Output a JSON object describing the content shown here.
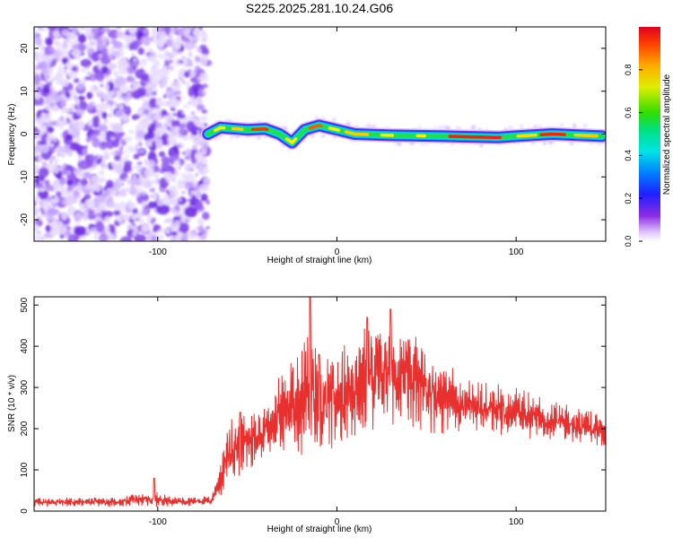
{
  "title": "S225.2025.281.10.24.G06",
  "chart_data": [
    {
      "type": "heatmap",
      "xlabel": "Height of straight line (km)",
      "ylabel": "Frequency (Hz)",
      "xlim": [
        -169,
        150
      ],
      "ylim": [
        -25,
        25
      ],
      "xticks": [
        -100,
        0,
        100
      ],
      "yticks": [
        -20,
        -10,
        0,
        10,
        20
      ],
      "colorbar": {
        "label": "Normalized spectral amplitude",
        "range": [
          0,
          1
        ],
        "ticks": [
          "0.0",
          "0.2",
          "0.4",
          "0.6",
          "0.8"
        ]
      },
      "noise_region_x": [
        -169,
        -72
      ],
      "ridge": [
        {
          "x": -72,
          "f": 0
        },
        {
          "x": -65,
          "f": 1.5
        },
        {
          "x": -50,
          "f": 1
        },
        {
          "x": -40,
          "f": 1.2
        },
        {
          "x": -32,
          "f": 0
        },
        {
          "x": -25,
          "f": -2
        },
        {
          "x": -18,
          "f": 1
        },
        {
          "x": -10,
          "f": 2
        },
        {
          "x": 0,
          "f": 1
        },
        {
          "x": 10,
          "f": 0
        },
        {
          "x": 30,
          "f": -0.3
        },
        {
          "x": 60,
          "f": -0.5
        },
        {
          "x": 90,
          "f": -0.8
        },
        {
          "x": 100,
          "f": -0.5
        },
        {
          "x": 120,
          "f": 0
        },
        {
          "x": 148,
          "f": -0.5
        }
      ]
    },
    {
      "type": "line",
      "xlabel": "Height of straight line (km)",
      "ylabel": "SNR (10 * v/v)",
      "xlim": [
        -169,
        150
      ],
      "ylim": [
        0,
        520
      ],
      "xticks": [
        -100,
        0,
        100
      ],
      "yticks": [
        0,
        100,
        200,
        300,
        400,
        500
      ],
      "series": [
        {
          "name": "SNR",
          "color": "#e8302f",
          "envelope": [
            {
              "x": -169,
              "mean": 22,
              "spread": 10
            },
            {
              "x": -120,
              "mean": 22,
              "spread": 10
            },
            {
              "x": -115,
              "mean": 28,
              "spread": 14
            },
            {
              "x": -100,
              "mean": 28,
              "spread": 16
            },
            {
              "x": -90,
              "mean": 24,
              "spread": 10
            },
            {
              "x": -70,
              "mean": 25,
              "spread": 10
            },
            {
              "x": -64,
              "mean": 90,
              "spread": 50
            },
            {
              "x": -60,
              "mean": 150,
              "spread": 70
            },
            {
              "x": -45,
              "mean": 180,
              "spread": 70
            },
            {
              "x": -30,
              "mean": 240,
              "spread": 90
            },
            {
              "x": -20,
              "mean": 270,
              "spread": 130
            },
            {
              "x": -15,
              "mean": 300,
              "spread": 160
            },
            {
              "x": -10,
              "mean": 240,
              "spread": 110
            },
            {
              "x": 0,
              "mean": 270,
              "spread": 110
            },
            {
              "x": 15,
              "mean": 320,
              "spread": 130
            },
            {
              "x": 30,
              "mean": 340,
              "spread": 120
            },
            {
              "x": 45,
              "mean": 310,
              "spread": 110
            },
            {
              "x": 60,
              "mean": 275,
              "spread": 80
            },
            {
              "x": 80,
              "mean": 250,
              "spread": 60
            },
            {
              "x": 100,
              "mean": 240,
              "spread": 55
            },
            {
              "x": 120,
              "mean": 220,
              "spread": 45
            },
            {
              "x": 150,
              "mean": 200,
              "spread": 40
            }
          ],
          "peaks": [
            {
              "x": -15,
              "y": 520
            },
            {
              "x": -10,
              "y": 380
            },
            {
              "x": 17,
              "y": 470
            },
            {
              "x": 30,
              "y": 490
            },
            {
              "x": -54,
              "y": 240
            },
            {
              "x": -102,
              "y": 80
            }
          ]
        }
      ]
    }
  ]
}
